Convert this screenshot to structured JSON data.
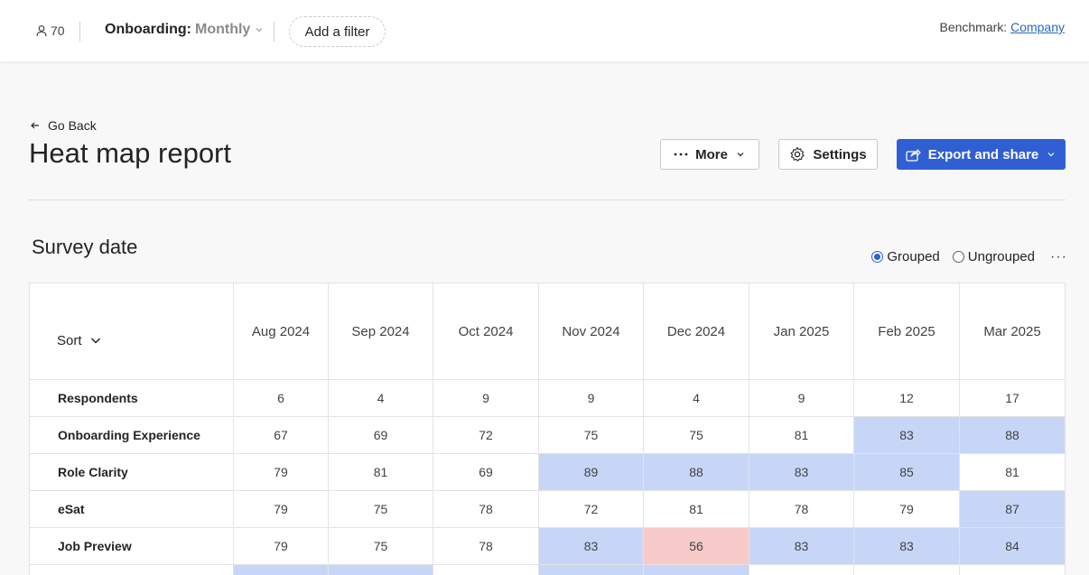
{
  "topbar": {
    "people_count": "70",
    "onboarding_key": "Onboarding:",
    "onboarding_value": "Monthly",
    "add_filter": "Add a filter",
    "benchmark_label": "Benchmark:",
    "benchmark_value": "Company"
  },
  "header": {
    "go_back": "Go Back",
    "title": "Heat map report",
    "more": "More",
    "settings": "Settings",
    "export": "Export and share"
  },
  "section": {
    "title": "Survey date",
    "grouped": "Grouped",
    "ungrouped": "Ungrouped"
  },
  "table": {
    "sort_label": "Sort",
    "columns": [
      "Aug 2024",
      "Sep 2024",
      "Oct 2024",
      "Nov 2024",
      "Dec 2024",
      "Jan 2025",
      "Feb 2025",
      "Mar 2025"
    ],
    "rows": [
      {
        "label": "Respondents",
        "values": [
          "6",
          "4",
          "9",
          "9",
          "4",
          "9",
          "12",
          "17"
        ],
        "colors": [
          "",
          "",
          "",
          "",
          "",
          "",
          "",
          ""
        ]
      },
      {
        "label": "Onboarding Experience",
        "values": [
          "67",
          "69",
          "72",
          "75",
          "75",
          "81",
          "83",
          "88"
        ],
        "colors": [
          "",
          "",
          "",
          "",
          "",
          "",
          "blue",
          "blue"
        ]
      },
      {
        "label": "Role Clarity",
        "values": [
          "79",
          "81",
          "69",
          "89",
          "88",
          "83",
          "85",
          "81"
        ],
        "colors": [
          "",
          "",
          "",
          "blue",
          "blue",
          "blue",
          "blue",
          ""
        ]
      },
      {
        "label": "eSat",
        "values": [
          "79",
          "75",
          "78",
          "72",
          "81",
          "78",
          "79",
          "87"
        ],
        "colors": [
          "",
          "",
          "",
          "",
          "",
          "",
          "",
          "blue"
        ]
      },
      {
        "label": "Job Preview",
        "values": [
          "79",
          "75",
          "78",
          "83",
          "56",
          "83",
          "83",
          "84"
        ],
        "colors": [
          "",
          "",
          "",
          "blue",
          "red",
          "blue",
          "blue",
          "blue"
        ]
      },
      {
        "label": "",
        "values": [
          "",
          "",
          "",
          "",
          "",
          "",
          "",
          ""
        ],
        "colors": [
          "blue",
          "blue",
          "",
          "blue",
          "blue",
          "",
          "",
          ""
        ]
      }
    ]
  },
  "colors": {
    "accent": "#2f5fd3",
    "favorable": "#c7d6f7",
    "unfavorable": "#f7c9c9"
  },
  "icons": [
    "person-icon",
    "chevron-down-icon",
    "arrow-left-icon",
    "ellipsis-icon",
    "gear-icon",
    "share-icon"
  ]
}
